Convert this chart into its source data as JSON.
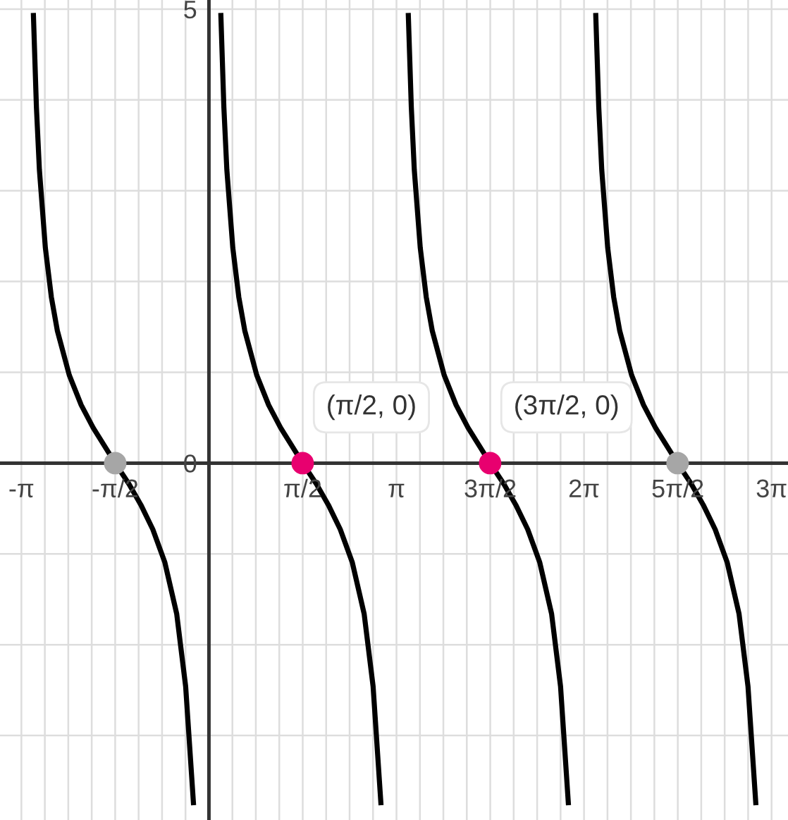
{
  "chart_data": {
    "type": "line",
    "series": [
      {
        "color": "#000000",
        "x": [
          -2.94,
          -2.89,
          -2.84,
          -2.74,
          -2.64,
          -2.54,
          -2.34,
          -2.14,
          -1.94,
          -1.57,
          -1.34,
          -1.14,
          -0.94,
          -0.74,
          -0.54,
          -0.39,
          -0.26
        ],
        "values": [
          4.93,
          3.92,
          3.23,
          2.37,
          1.83,
          1.46,
          0.97,
          0.64,
          0.39,
          0,
          -0.23,
          -0.46,
          -0.73,
          -1.09,
          -1.66,
          -2.46,
          -3.74
        ]
      },
      {
        "color": "#000000",
        "x": [
          0.2,
          0.25,
          0.3,
          0.4,
          0.5,
          0.6,
          0.8,
          1.0,
          1.2,
          1.57,
          1.8,
          2.0,
          2.2,
          2.4,
          2.6,
          2.75,
          2.88
        ],
        "values": [
          4.93,
          3.92,
          3.23,
          2.37,
          1.83,
          1.46,
          0.97,
          0.64,
          0.39,
          0,
          -0.23,
          -0.46,
          -0.73,
          -1.09,
          -1.66,
          -2.46,
          -3.74
        ]
      },
      {
        "color": "#000000",
        "x": [
          3.34,
          3.39,
          3.44,
          3.54,
          3.64,
          3.74,
          3.94,
          4.14,
          4.34,
          4.71,
          4.94,
          5.14,
          5.34,
          5.54,
          5.74,
          5.89,
          6.02
        ],
        "values": [
          4.93,
          3.92,
          3.23,
          2.37,
          1.83,
          1.46,
          0.97,
          0.64,
          0.39,
          0,
          -0.23,
          -0.46,
          -0.73,
          -1.09,
          -1.66,
          -2.46,
          -3.74
        ]
      },
      {
        "color": "#000000",
        "x": [
          6.48,
          6.53,
          6.58,
          6.68,
          6.78,
          6.88,
          7.08,
          7.28,
          7.48,
          7.85,
          8.08,
          8.28,
          8.48,
          8.68,
          8.88,
          9.03,
          9.16
        ],
        "values": [
          4.93,
          3.92,
          3.23,
          2.37,
          1.83,
          1.46,
          0.97,
          0.64,
          0.39,
          0,
          -0.23,
          -0.46,
          -0.73,
          -1.09,
          -1.66,
          -2.46,
          -3.74
        ]
      },
      {
        "type": "scatter",
        "marker": "circle",
        "x": [
          1.57,
          4.71
        ],
        "values": [
          0,
          0
        ],
        "color": "#e8006f"
      },
      {
        "type": "scatter",
        "marker": "circle",
        "x": [
          -1.57,
          7.85
        ],
        "values": [
          0,
          0
        ],
        "color": "#a6a6a6"
      }
    ],
    "annotations": [
      {
        "text": "(π/2, 0)",
        "x": 1.57,
        "y": 0
      },
      {
        "text": "(3π/2, 0)",
        "x": 4.71,
        "y": 0
      }
    ],
    "xlim": [
      -3.5,
      9.7
    ],
    "ylim": [
      -3.93,
      5.1
    ],
    "xticks": [
      {
        "value": -3.1416,
        "label": "-π"
      },
      {
        "value": -2.7489,
        "label": null
      },
      {
        "value": -2.3562,
        "label": null
      },
      {
        "value": -1.9635,
        "label": null
      },
      {
        "value": -1.5708,
        "label": "-π/2"
      },
      {
        "value": -1.1781,
        "label": null
      },
      {
        "value": -0.7854,
        "label": null
      },
      {
        "value": -0.3927,
        "label": null
      },
      {
        "value": 0,
        "label": null
      },
      {
        "value": 0.3927,
        "label": null
      },
      {
        "value": 0.7854,
        "label": null
      },
      {
        "value": 1.1781,
        "label": null
      },
      {
        "value": 1.5708,
        "label": "π/2"
      },
      {
        "value": 1.9635,
        "label": null
      },
      {
        "value": 2.3562,
        "label": null
      },
      {
        "value": 2.7489,
        "label": null
      },
      {
        "value": 3.1416,
        "label": "π"
      },
      {
        "value": 3.5343,
        "label": null
      },
      {
        "value": 3.927,
        "label": null
      },
      {
        "value": 4.3197,
        "label": null
      },
      {
        "value": 4.7124,
        "label": "3π/2"
      },
      {
        "value": 5.1051,
        "label": null
      },
      {
        "value": 5.4978,
        "label": null
      },
      {
        "value": 5.8905,
        "label": null
      },
      {
        "value": 6.2832,
        "label": "2π"
      },
      {
        "value": 6.6759,
        "label": null
      },
      {
        "value": 7.0686,
        "label": null
      },
      {
        "value": 7.4613,
        "label": null
      },
      {
        "value": 7.854,
        "label": "5π/2"
      },
      {
        "value": 8.2467,
        "label": null
      },
      {
        "value": 8.6394,
        "label": null
      },
      {
        "value": 9.0321,
        "label": null
      },
      {
        "value": 9.4248,
        "label": "3π"
      }
    ],
    "yticks": [
      {
        "value": -3,
        "label": null
      },
      {
        "value": -2,
        "label": null
      },
      {
        "value": -1,
        "label": null
      },
      0,
      {
        "value": 1,
        "label": null
      },
      {
        "value": 2,
        "label": null
      },
      {
        "value": 3,
        "label": null
      },
      {
        "value": 4,
        "label": null
      },
      5
    ],
    "grid": true,
    "legend": false,
    "marker": "none",
    "line_style": "solid"
  }
}
